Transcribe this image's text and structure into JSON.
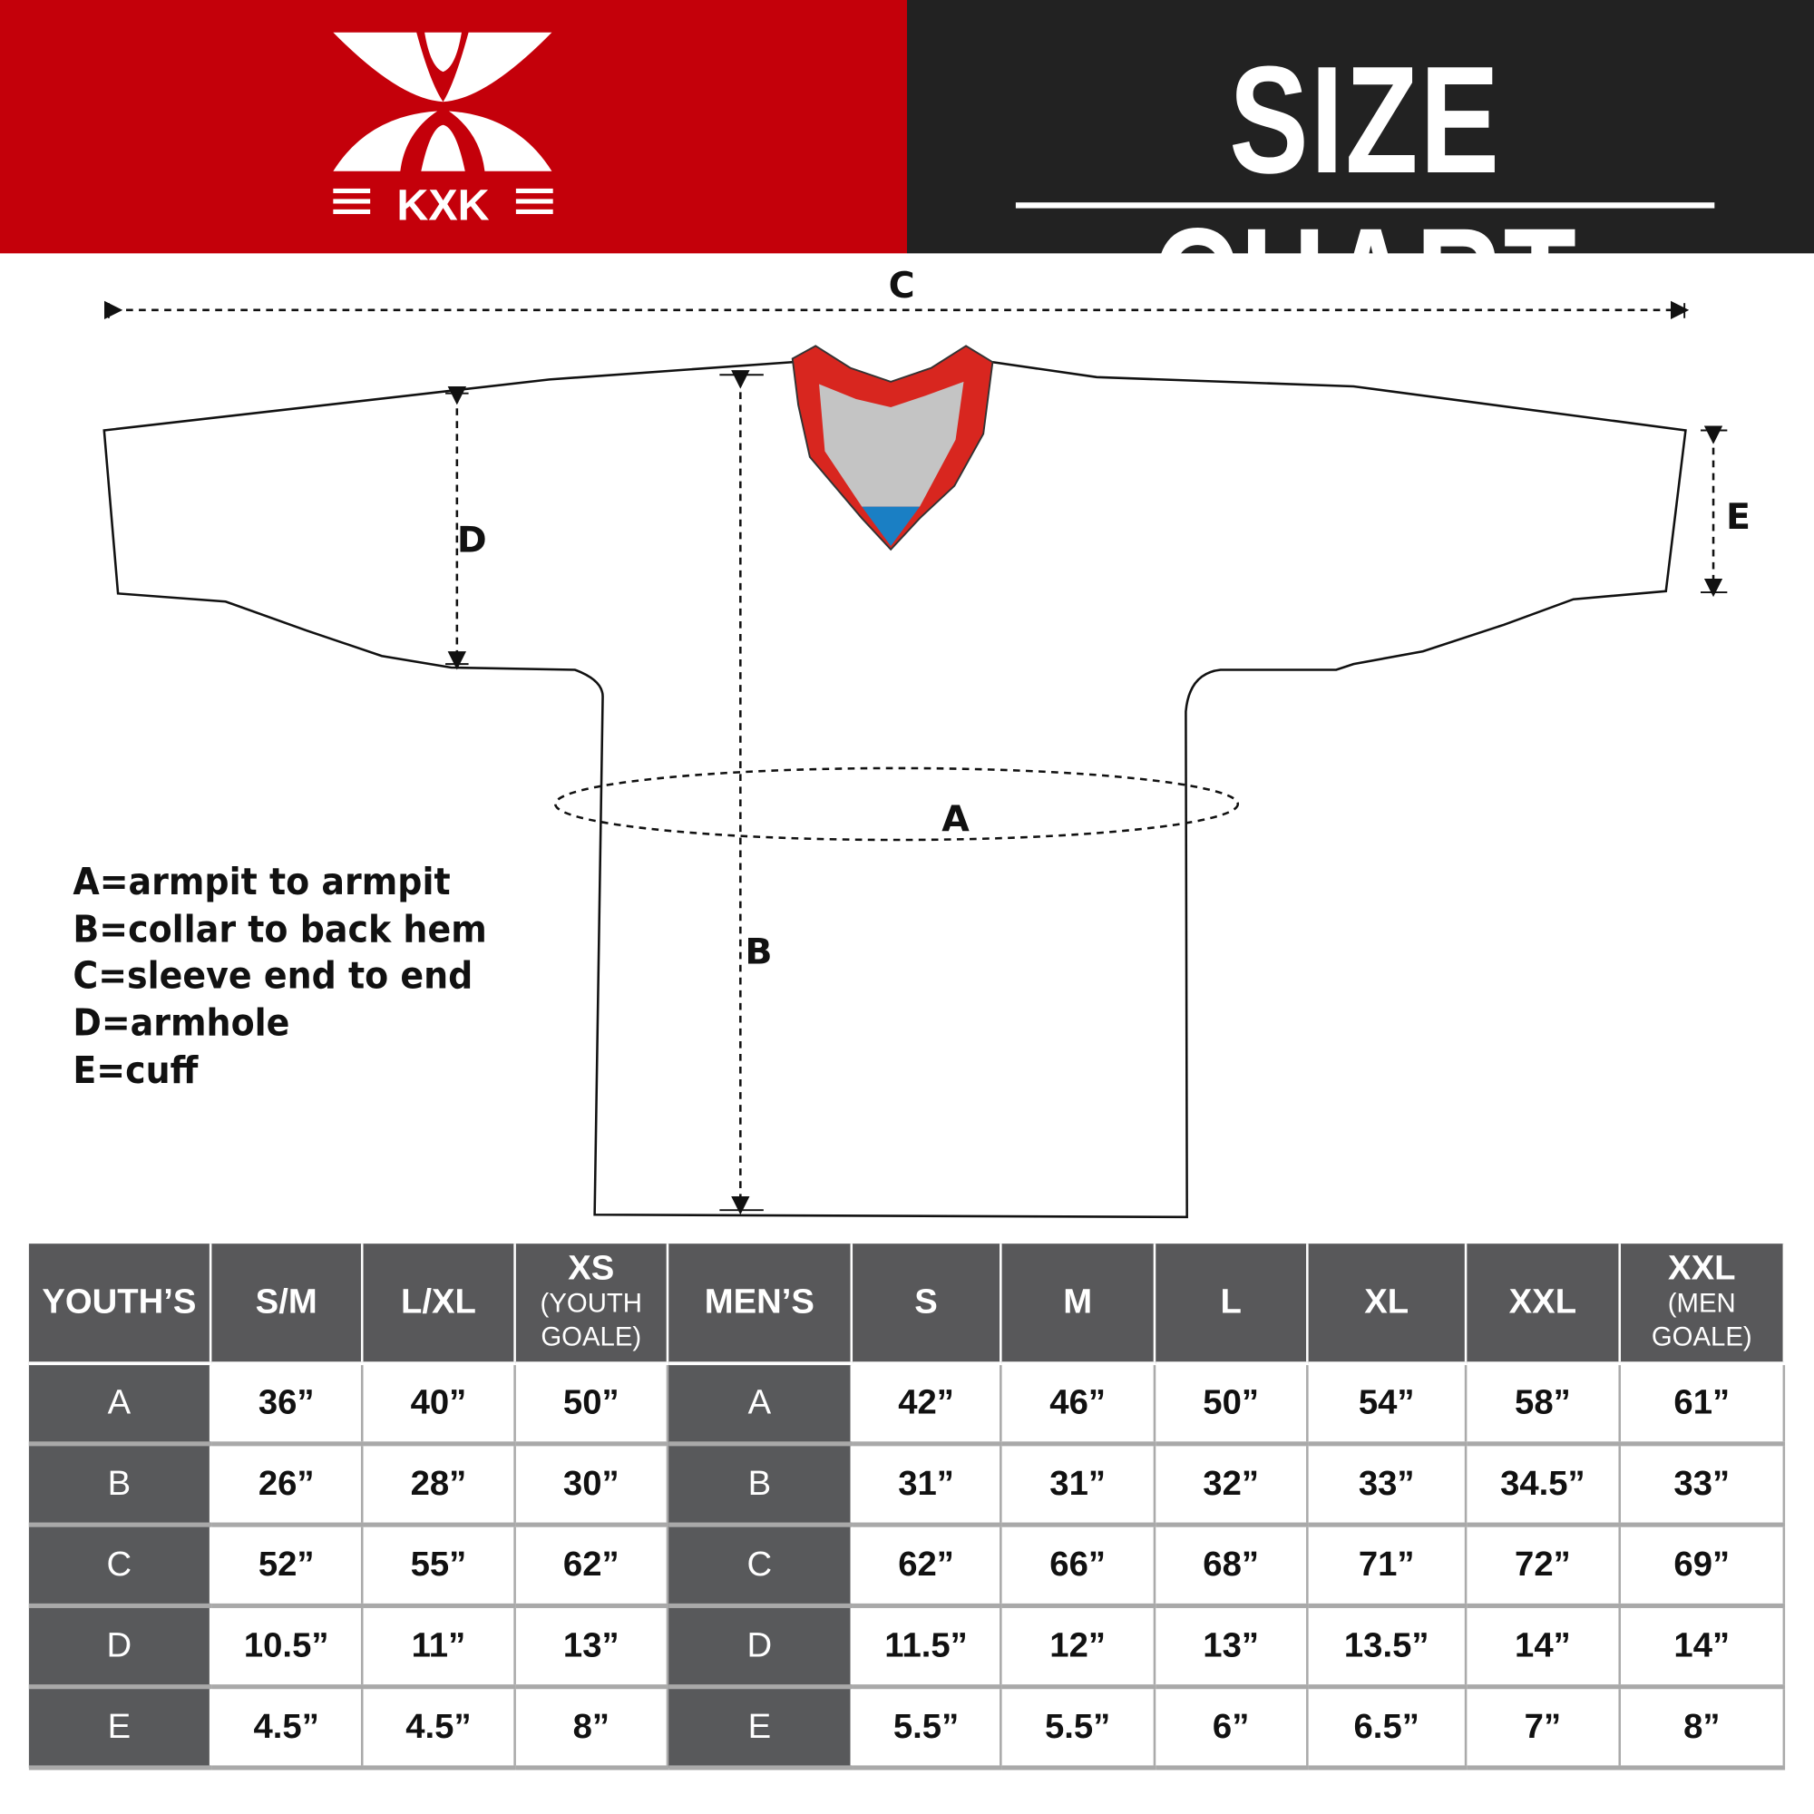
{
  "header": {
    "brand": "KXK",
    "title": "SIZE CHART",
    "colors": {
      "brand_red": "#c4000a",
      "header_dark": "#222222",
      "table_header": "#58585a",
      "collar_red": "#d8261f",
      "collar_gray": "#c4c4c4",
      "collar_blue": "#1a7fc4"
    }
  },
  "diagram": {
    "labels": {
      "a": "A",
      "b": "B",
      "c": "C",
      "d": "D",
      "e": "E"
    },
    "legend": [
      "A=armpit to armpit",
      "B=collar to back hem",
      "C=sleeve end to end",
      "D=armhole",
      "E=cuff"
    ]
  },
  "table": {
    "headers": [
      {
        "main": "YOUTH’S",
        "sub": ""
      },
      {
        "main": "S/M",
        "sub": ""
      },
      {
        "main": "L/XL",
        "sub": ""
      },
      {
        "main": "XS",
        "sub": "(YOUTH GOALE)"
      },
      {
        "main": "MEN’S",
        "sub": ""
      },
      {
        "main": "S",
        "sub": ""
      },
      {
        "main": "M",
        "sub": ""
      },
      {
        "main": "L",
        "sub": ""
      },
      {
        "main": "XL",
        "sub": ""
      },
      {
        "main": "XXL",
        "sub": ""
      },
      {
        "main": "XXL",
        "sub": "(MEN GOALE)"
      }
    ],
    "rows": [
      [
        "A",
        "36”",
        "40”",
        "50”",
        "A",
        "42”",
        "46”",
        "50”",
        "54”",
        "58”",
        "61”"
      ],
      [
        "B",
        "26”",
        "28”",
        "30”",
        "B",
        "31”",
        "31”",
        "32”",
        "33”",
        "34.5”",
        "33”"
      ],
      [
        "C",
        "52”",
        "55”",
        "62”",
        "C",
        "62”",
        "66”",
        "68”",
        "71”",
        "72”",
        "69”"
      ],
      [
        "D",
        "10.5”",
        "11”",
        "13”",
        "D",
        "11.5”",
        "12”",
        "13”",
        "13.5”",
        "14”",
        "14”"
      ],
      [
        "E",
        "4.5”",
        "4.5”",
        "8”",
        "E",
        "5.5”",
        "5.5”",
        "6”",
        "6.5”",
        "7”",
        "8”"
      ]
    ]
  }
}
